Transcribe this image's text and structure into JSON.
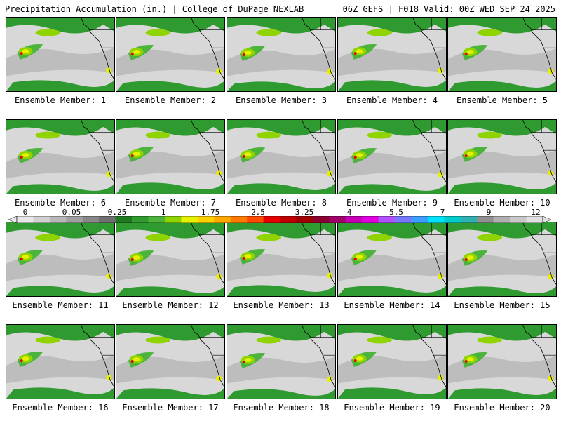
{
  "header": {
    "left": "Precipitation Accumulation (in.) | College of DuPage NEXLAB",
    "right": "06Z GEFS | F018 Valid: 00Z WED SEP 24 2025"
  },
  "panels": [
    {
      "label": "Ensemble Member: 1"
    },
    {
      "label": "Ensemble Member: 2"
    },
    {
      "label": "Ensemble Member: 3"
    },
    {
      "label": "Ensemble Member: 4"
    },
    {
      "label": "Ensemble Member: 5"
    },
    {
      "label": "Ensemble Member: 6"
    },
    {
      "label": "Ensemble Member: 7"
    },
    {
      "label": "Ensemble Member: 8"
    },
    {
      "label": "Ensemble Member: 9"
    },
    {
      "label": "Ensemble Member: 10"
    },
    {
      "label": "Ensemble Member: 11"
    },
    {
      "label": "Ensemble Member: 12"
    },
    {
      "label": "Ensemble Member: 13"
    },
    {
      "label": "Ensemble Member: 14"
    },
    {
      "label": "Ensemble Member: 15"
    },
    {
      "label": "Ensemble Member: 16"
    },
    {
      "label": "Ensemble Member: 17"
    },
    {
      "label": "Ensemble Member: 18"
    },
    {
      "label": "Ensemble Member: 19"
    },
    {
      "label": "Ensemble Member: 20"
    }
  ],
  "colorbar": {
    "ticks": [
      "0",
      "0.05",
      "0.25",
      "1",
      "1.75",
      "2.5",
      "3.25",
      "4",
      "5.5",
      "7",
      "9",
      "12"
    ],
    "colors": [
      "#e8e8e8",
      "#d0d0d0",
      "#b8b8b8",
      "#a0a0a0",
      "#888888",
      "#707070",
      "#1f7a1f",
      "#2f9a2f",
      "#4cb43c",
      "#8fd400",
      "#e6f000",
      "#ffd000",
      "#ffa800",
      "#ff7a00",
      "#ff4a00",
      "#e80000",
      "#c00000",
      "#a00000",
      "#8a0030",
      "#a0006a",
      "#c800b8",
      "#e000e0",
      "#b050ff",
      "#7878ff",
      "#3ca0ff",
      "#00e0ff",
      "#00cccc",
      "#30b0b0",
      "#909090",
      "#b0b0b0",
      "#c8c8c8",
      "#e0e0e0"
    ]
  },
  "colors": {
    "land_gray": "#cfcfcf",
    "precip_green": "#2f9a2f",
    "precip_light_green": "#8fd400",
    "precip_yellow": "#e6f000",
    "precip_red": "#e80000",
    "coastline": "#000000"
  }
}
